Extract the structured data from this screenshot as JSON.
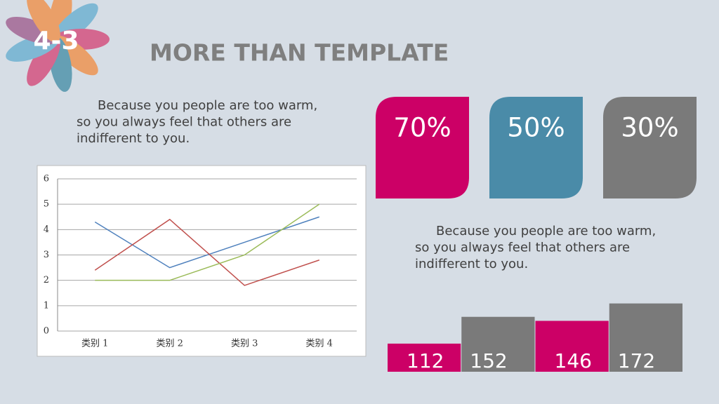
{
  "header": {
    "badge": "4-3",
    "title": "MORE THAN TEMPLATE"
  },
  "texts": [
    {
      "lines": [
        "Because you people are too warm,",
        "so you always feel that others are",
        "indifferent to you."
      ]
    },
    {
      "lines": [
        "Because you people are too warm,",
        "so you always feel that others are",
        "indifferent to you."
      ]
    }
  ],
  "chart_data": [
    {
      "type": "line",
      "categories": [
        "类别 1",
        "类别 2",
        "类别 3",
        "类别 4"
      ],
      "series": [
        {
          "color": "#4f81bd",
          "values": [
            4.3,
            2.5,
            3.5,
            4.5
          ]
        },
        {
          "color": "#c0504d",
          "values": [
            2.4,
            4.4,
            1.8,
            2.8
          ]
        },
        {
          "color": "#9bbb59",
          "values": [
            2,
            2,
            3,
            5
          ]
        }
      ],
      "ylim": [
        0,
        6
      ],
      "yticks": [
        0,
        1,
        2,
        3,
        4,
        5,
        6
      ],
      "grid": true
    },
    {
      "type": "tiles",
      "values": [
        70,
        50,
        30
      ],
      "value_labels": [
        "70%",
        "50%",
        "30%"
      ],
      "colors": [
        "#cc0066",
        "#4a8ba8",
        "#7a7a7a"
      ]
    },
    {
      "type": "bar",
      "values": [
        112,
        152,
        146,
        172
      ],
      "colors": [
        "#cc0066",
        "#7a7a7a",
        "#cc0066",
        "#7a7a7a"
      ],
      "ylim": [
        70,
        180
      ]
    }
  ]
}
